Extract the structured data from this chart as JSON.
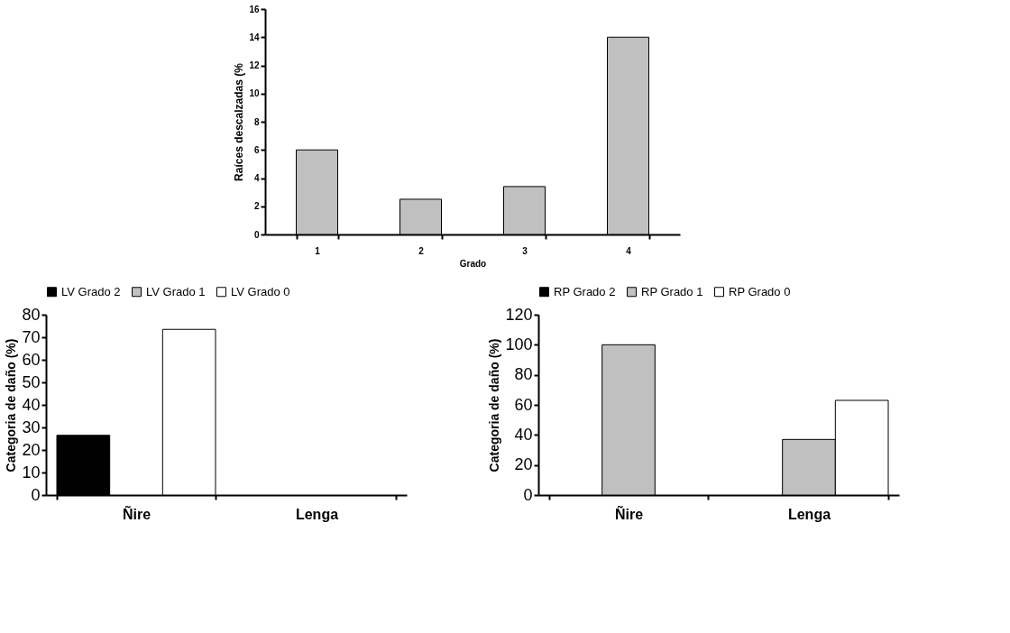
{
  "chart_data": [
    {
      "type": "bar",
      "xlabel": "Grado",
      "ylabel": "Raíces descalzadas (%",
      "categories": [
        "1",
        "2",
        "3",
        "4"
      ],
      "series": [
        {
          "color": "#c0c0c0",
          "values": [
            6,
            2.5,
            3.4,
            14
          ]
        }
      ],
      "ylim": [
        0,
        16
      ],
      "yticks": [
        0,
        2,
        4,
        6,
        8,
        10,
        12,
        14,
        16
      ],
      "grid": false,
      "legend": false
    },
    {
      "type": "bar",
      "ylabel": "Categoria de daño (%)",
      "categories": [
        "Ñire",
        "Lenga"
      ],
      "series": [
        {
          "name": "LV Grado 2",
          "color": "#000000",
          "values": [
            26.5,
            0
          ]
        },
        {
          "name": "LV Grado 1",
          "color": "#c0c0c0",
          "values": [
            0,
            0
          ]
        },
        {
          "name": "LV Grado 0",
          "color": "#ffffff",
          "values": [
            73.5,
            0
          ]
        }
      ],
      "ylim": [
        0,
        80
      ],
      "yticks": [
        0,
        10,
        20,
        30,
        40,
        50,
        60,
        70,
        80
      ],
      "grid": false,
      "legend": "top"
    },
    {
      "type": "bar",
      "ylabel": "Categoria de daño (%)",
      "categories": [
        "Ñire",
        "Lenga"
      ],
      "series": [
        {
          "name": "RP Grado 2",
          "color": "#000000",
          "values": [
            0,
            0
          ]
        },
        {
          "name": "RP Grado 1",
          "color": "#c0c0c0",
          "values": [
            100,
            37
          ]
        },
        {
          "name": "RP Grado 0",
          "color": "#ffffff",
          "values": [
            0,
            63
          ]
        }
      ],
      "ylim": [
        0,
        120
      ],
      "yticks": [
        0,
        20,
        40,
        60,
        80,
        100,
        120
      ],
      "grid": false,
      "legend": "top"
    }
  ]
}
